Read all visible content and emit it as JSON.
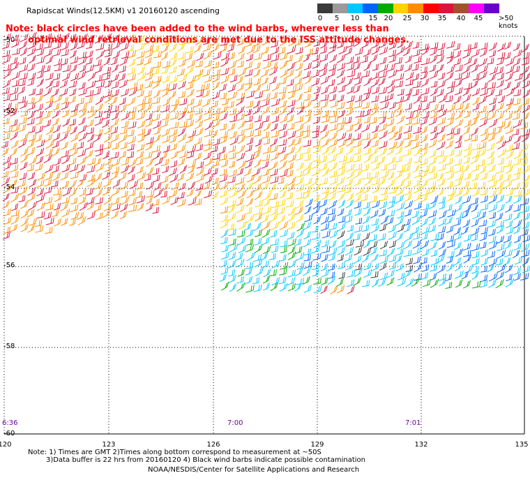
{
  "header": {
    "title": "Rapidscat Winds(12.5KM) v1 20160120 ascending"
  },
  "note": {
    "line1": "Note: black circles have been added to the wind barbs, wherever less than",
    "line2": "optimal wind retrieval conditions are met due to the ISS attitude changes."
  },
  "colorbar": {
    "labels": [
      "0",
      "5",
      "10",
      "15",
      "20",
      "25",
      "30",
      "35",
      "40",
      "45",
      ">50 knots"
    ],
    "colors": [
      "#3a3a3a",
      "#9a9a9a",
      "#00c8ff",
      "#0064ff",
      "#00aa00",
      "#ffd200",
      "#ff8c00",
      "#ff0000",
      "#dc143c",
      "#a0522d",
      "#ff00ff",
      "#6a00c8"
    ]
  },
  "map": {
    "latitude_labels": [
      "-50",
      "-52",
      "-54",
      "-56",
      "-58",
      "-60"
    ],
    "longitude_labels": [
      "120",
      "123",
      "126",
      "129",
      "132",
      "135"
    ],
    "time_labels": [
      "6:36",
      "7:00",
      "7:01"
    ]
  },
  "footer": {
    "note1": "Note: 1) Times are GMT 2)Times along bottom correspond to measurement at ~50S",
    "note2": "3)Data buffer is 22 hrs from 20160120 4) Black wind barbs indicate possible contamination",
    "credit": "NOAA/NESDIS/Center for Satellite Applications and Research"
  }
}
